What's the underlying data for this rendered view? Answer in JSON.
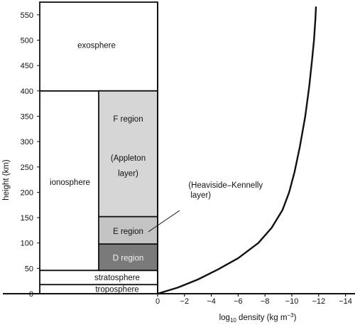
{
  "chart_data": {
    "type": "line",
    "xlabel": {
      "prefix": "log",
      "sub": "10",
      "mid": " density (kg m",
      "sup": "−3",
      "suffix": ")"
    },
    "ylabel": "height (km)",
    "xlim": [
      0,
      -14
    ],
    "ylim": [
      0,
      575
    ],
    "xticks": [
      0,
      -2,
      -4,
      -6,
      -8,
      -10,
      -12,
      -14
    ],
    "xtick_labels": [
      "0",
      "−2",
      "−4",
      "−6",
      "−8",
      "−10",
      "−12",
      "−14"
    ],
    "yticks": [
      0,
      50,
      100,
      150,
      200,
      250,
      300,
      350,
      400,
      450,
      500,
      550
    ],
    "ytick_labels": [
      "0",
      "50",
      "100",
      "150",
      "200",
      "250",
      "300",
      "350",
      "400",
      "450",
      "500",
      "550"
    ],
    "grid": false,
    "series": [
      {
        "x": [
          0,
          -1.5,
          -3,
          -4.5,
          -6,
          -7.5,
          -8.5,
          -9.3,
          -9.8,
          -10.2,
          -10.6,
          -11.0,
          -11.3,
          -11.5,
          -11.65,
          -11.75,
          -11.8
        ],
        "y": [
          0,
          12,
          28,
          48,
          70,
          100,
          130,
          165,
          200,
          240,
          290,
          350,
          410,
          460,
          500,
          540,
          565
        ]
      }
    ],
    "layers": [
      {
        "name": "troposphere",
        "bottom": 0,
        "top": 18
      },
      {
        "name": "stratosphere",
        "bottom": 18,
        "top": 46
      },
      {
        "name": "ionosphere",
        "bottom": 46,
        "top": 400
      },
      {
        "name": "exosphere",
        "bottom": 400,
        "top": 575
      }
    ],
    "regions": [
      {
        "name": "D region",
        "bottom": 46,
        "top": 98,
        "shade": "#7a7a7a"
      },
      {
        "name": "E region",
        "bottom": 98,
        "top": 152,
        "shade": "#c4c4c4"
      },
      {
        "name": "F region",
        "bottom": 152,
        "top": 400,
        "shade": "#d6d6d6",
        "lines": [
          "F region",
          "(Appleton",
          "layer)"
        ],
        "line_y": [
          345,
          268,
          238
        ]
      }
    ],
    "annotation": {
      "lines": [
        "(Heaviside–Kennelly",
        "layer)"
      ],
      "x": -1.5,
      "y": 125
    }
  }
}
